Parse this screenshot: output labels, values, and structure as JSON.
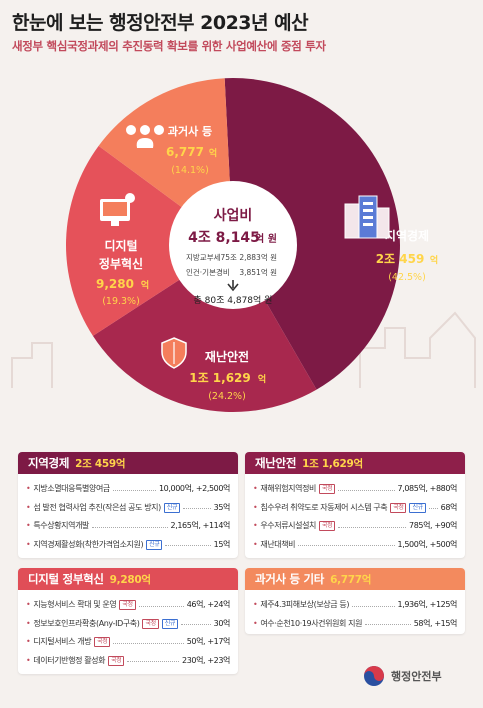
{
  "header": {
    "title": "한눈에 보는 행정안전부 2023년 예산",
    "subtitle": "새정부 핵심국정과제의 추진동력 확보를 위한 사업예산에 중점 투자"
  },
  "chart_data": {
    "type": "pie",
    "center": {
      "label": "사업비",
      "amount_num": "4조 8,145",
      "amount_unit": "억 원",
      "line1_label": "지방교부세",
      "line1_value": "75조 2,883억 원",
      "line2_label": "인건·기본경비",
      "line2_value": "3,851억 원",
      "total": "총 80조 4,878억 원"
    },
    "slices": [
      {
        "name": "지역경제",
        "name2": "",
        "amount_num": "2조 459",
        "amount_unit": "억",
        "percent_label": "(42.5%)",
        "value": 42.5,
        "color": "#7d1a45"
      },
      {
        "name": "재난안전",
        "name2": "",
        "amount_num": "1조 1,629",
        "amount_unit": "억",
        "percent_label": "(24.2%)",
        "value": 24.2,
        "color": "#a8284e"
      },
      {
        "name": "디지털",
        "name2": "정부혁신",
        "amount_num": "9,280",
        "amount_unit": "억",
        "percent_label": "(19.3%)",
        "value": 19.3,
        "color": "#e5525a"
      },
      {
        "name": "과거사 등",
        "name2": "",
        "amount_num": "6,777",
        "amount_unit": "억",
        "percent_label": "(14.1%)",
        "value": 14.1,
        "color": "#f47e5c"
      }
    ]
  },
  "panels": [
    {
      "title": "지역경제",
      "amount": "2조 459억",
      "color": "#7d1a45",
      "rows": [
        {
          "label": "지방소멸대응특별양여금",
          "tags": [],
          "value": "10,000억, +2,500억"
        },
        {
          "label": "섬 발전 협력사업 추진(작은섬 공도 방지)",
          "tags": [
            {
              "text": "신규",
              "style": "blue"
            }
          ],
          "value": "35억"
        },
        {
          "label": "특수상황지역개발",
          "tags": [],
          "value": "2,165억, +114억"
        },
        {
          "label": "지역경제활성화(착한가격업소지원)",
          "tags": [
            {
              "text": "신규",
              "style": "blue"
            }
          ],
          "value": "15억"
        }
      ]
    },
    {
      "title": "재난안전",
      "amount": "1조 1,629억",
      "color": "#8e1f4a",
      "rows": [
        {
          "label": "재해위험지역정비",
          "tags": [
            {
              "text": "국정",
              "style": "red"
            }
          ],
          "value": "7,085억, +880억"
        },
        {
          "label": "침수우려 취약도로 자동제어 시스템 구축",
          "tags": [
            {
              "text": "국정",
              "style": "red"
            },
            {
              "text": "신규",
              "style": "blue"
            }
          ],
          "value": "68억"
        },
        {
          "label": "우수저류시설설치",
          "tags": [
            {
              "text": "국정",
              "style": "red"
            }
          ],
          "value": "785억, +90억"
        },
        {
          "label": "재난대책비",
          "tags": [],
          "value": "1,500억, +500억"
        }
      ]
    },
    {
      "title": "디지털 정부혁신",
      "amount": "9,280억",
      "color": "#e04e57",
      "rows": [
        {
          "label": "지능형서비스 확대 및 운영",
          "tags": [
            {
              "text": "국정",
              "style": "red"
            }
          ],
          "value": "46억, +24억"
        },
        {
          "label": "정보보호인프라확충(Any-ID구축)",
          "tags": [
            {
              "text": "국정",
              "style": "red"
            },
            {
              "text": "신규",
              "style": "blue"
            }
          ],
          "value": "30억"
        },
        {
          "label": "디지털서비스 개방",
          "tags": [
            {
              "text": "국정",
              "style": "red"
            }
          ],
          "value": "50억, +17억"
        },
        {
          "label": "데이터기반행정 활성화",
          "tags": [
            {
              "text": "국정",
              "style": "red"
            }
          ],
          "value": "230억, +23억"
        }
      ]
    },
    {
      "title": "과거사 등 기타",
      "amount": "6,777억",
      "color": "#f38a5e",
      "rows": [
        {
          "label": "제주4.3피해보상(보상금 등)",
          "tags": [],
          "value": "1,936억, +125억"
        },
        {
          "label": "여수·순천10·19사건위원회 지원",
          "tags": [],
          "value": "58억, +15억"
        }
      ]
    }
  ],
  "logo": {
    "text": "행정안전부"
  }
}
